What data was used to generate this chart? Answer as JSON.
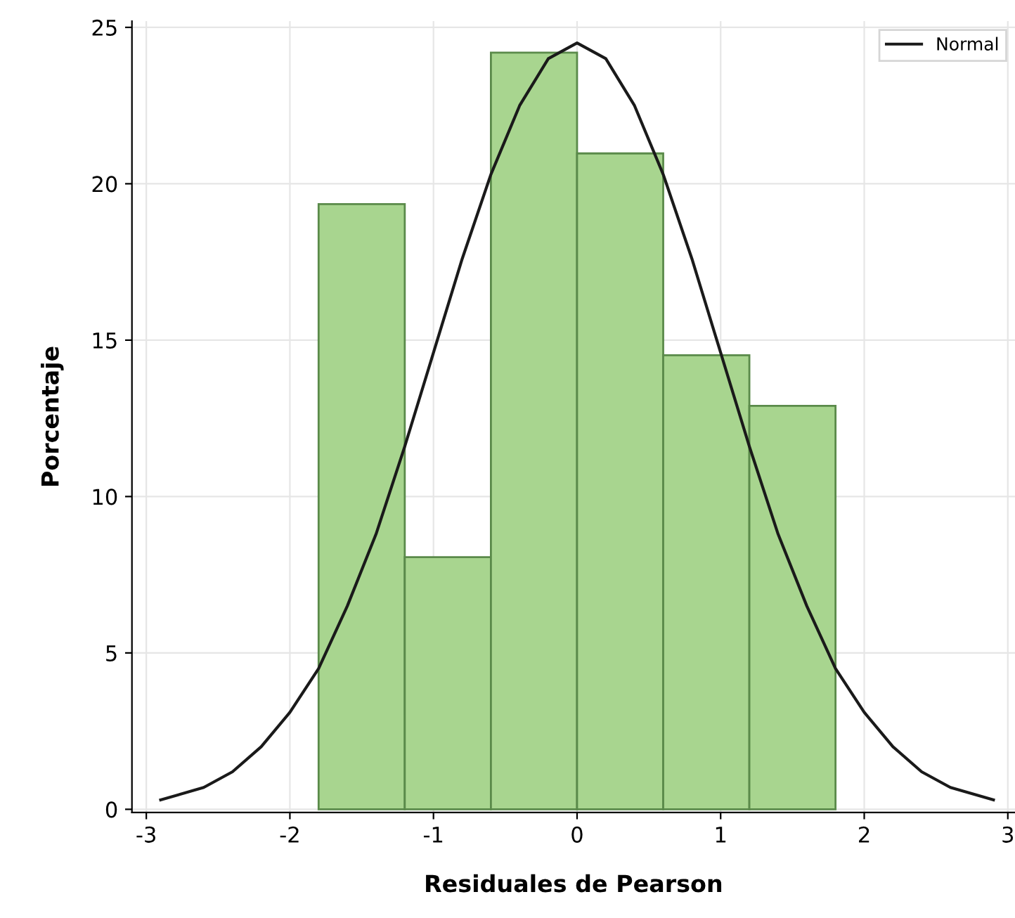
{
  "chart_data": {
    "type": "histogram",
    "xlabel": "Residuales de Pearson",
    "ylabel": "Porcentaje",
    "bins": [
      -1.8,
      -1.2,
      -0.6,
      0,
      0.6,
      1.2,
      1.8
    ],
    "values": [
      19.35,
      8.06,
      24.19,
      20.97,
      14.52,
      12.9
    ],
    "color": "#a8d58f",
    "series": [
      {
        "type": "line",
        "name": "Normal",
        "color": "#1a1a1a",
        "x": [
          -2.9,
          -2.6,
          -2.4,
          -2.2,
          -2.0,
          -1.8,
          -1.6,
          -1.4,
          -1.2,
          -1.0,
          -0.8,
          -0.6,
          -0.4,
          -0.2,
          0,
          0.2,
          0.4,
          0.6,
          0.8,
          1.0,
          1.2,
          1.4,
          1.6,
          1.8,
          2.0,
          2.2,
          2.4,
          2.6,
          2.9
        ],
        "values": [
          0.3,
          0.7,
          1.2,
          2.0,
          3.1,
          4.5,
          6.5,
          8.8,
          11.6,
          14.6,
          17.6,
          20.3,
          22.5,
          24.0,
          24.5,
          24.0,
          22.5,
          20.3,
          17.6,
          14.6,
          11.6,
          8.8,
          6.5,
          4.5,
          3.1,
          2.0,
          1.2,
          0.7,
          0.3
        ]
      }
    ],
    "xlim": [
      -3.1,
      3.05
    ],
    "ylim": [
      -0.1,
      25.2
    ],
    "xticks": [
      {
        "value": -3,
        "label": "-3"
      },
      {
        "value": -2,
        "label": "-2"
      },
      {
        "value": -1,
        "label": "-1"
      },
      0,
      1,
      2,
      3
    ],
    "yticks": [
      0,
      5,
      10,
      15,
      20,
      25
    ],
    "grid": true,
    "legend": "top right"
  }
}
